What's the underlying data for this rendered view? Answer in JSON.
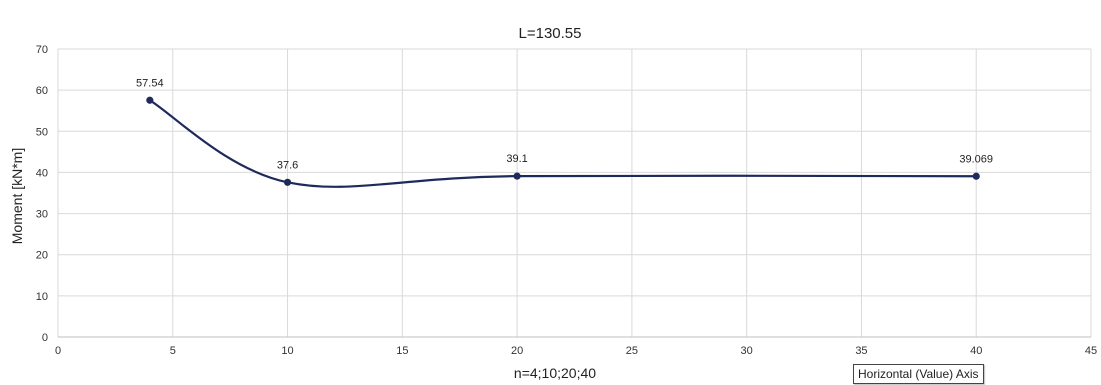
{
  "chart_data": {
    "type": "line",
    "title": "L=130.55",
    "xlabel": "n=4;10;20;40",
    "ylabel": "Moment [kN*m]",
    "xlim": [
      0,
      45
    ],
    "ylim": [
      0,
      70
    ],
    "xticks": [
      0,
      5,
      10,
      15,
      20,
      25,
      30,
      35,
      40,
      45
    ],
    "yticks": [
      0,
      10,
      20,
      30,
      40,
      50,
      60,
      70
    ],
    "grid": true,
    "smooth": true,
    "series": [
      {
        "x": [
          4,
          10,
          20,
          40
        ],
        "y": [
          57.54,
          37.6,
          39.1,
          39.069
        ],
        "labels": [
          "57.54",
          "37.6",
          "39.1",
          "39.069"
        ],
        "color": "#1f2a5c"
      }
    ]
  },
  "tooltip": {
    "text": "Horizontal (Value) Axis"
  },
  "colors": {
    "grid": "#d9d9d9",
    "axis": "#bfbfbf",
    "line": "#1f2a5c"
  }
}
